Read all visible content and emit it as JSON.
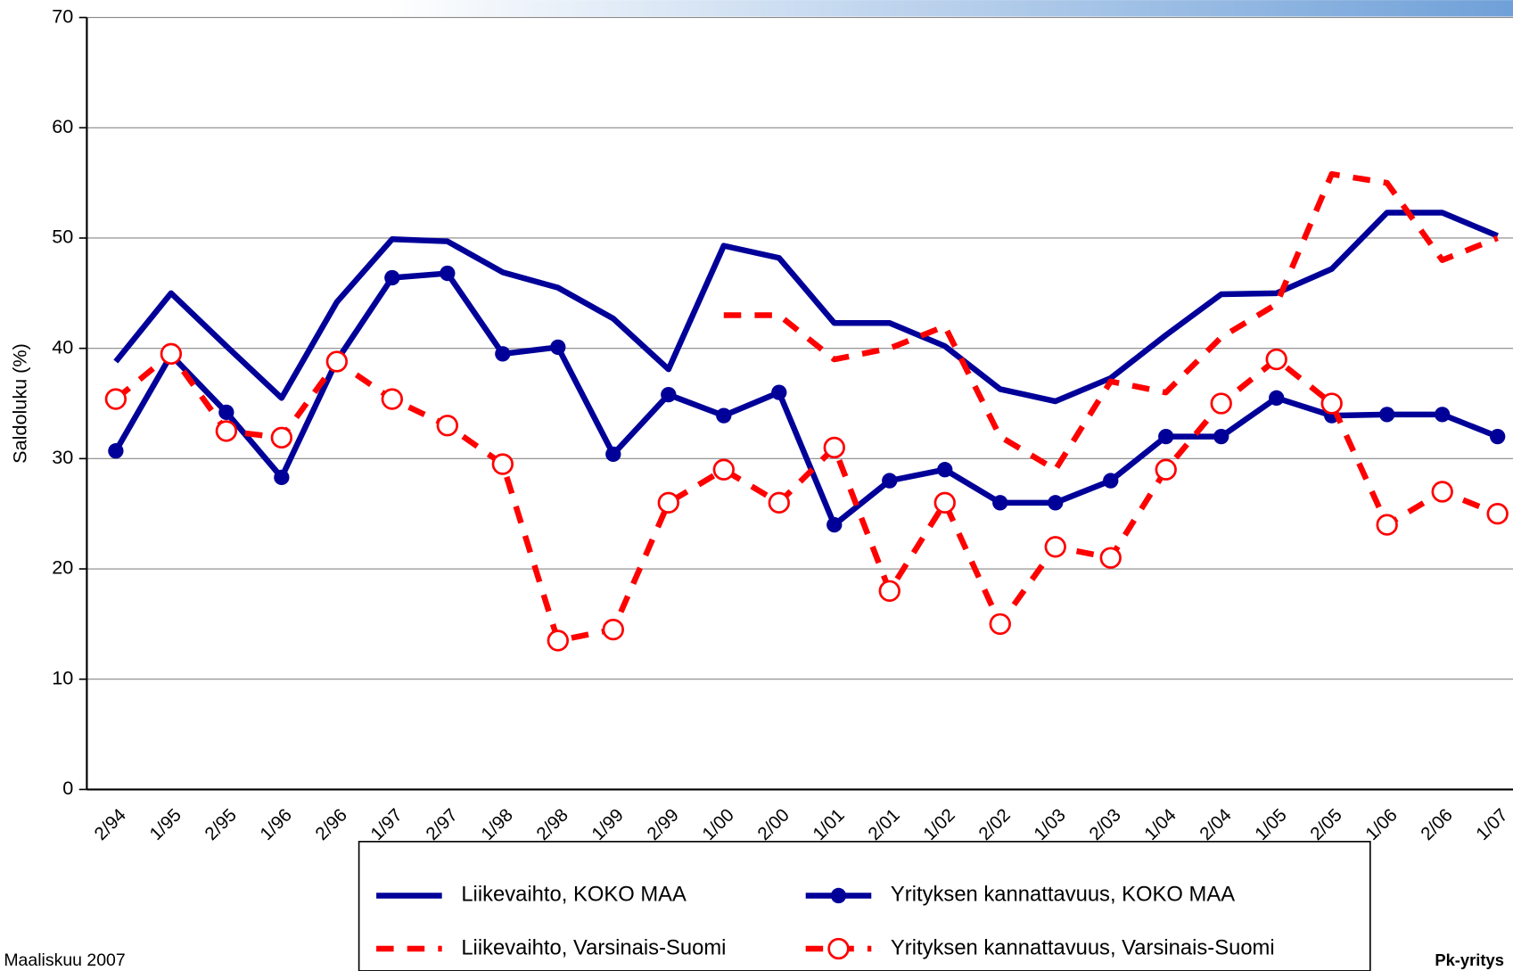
{
  "chart_data": {
    "type": "line",
    "y_label": "Saldoluku (%)",
    "footer_left": "Maaliskuu 2007",
    "footer_right": "Pk-yritys",
    "categories": [
      "2/94",
      "1/95",
      "2/95",
      "1/96",
      "2/96",
      "1/97",
      "2/97",
      "1/98",
      "2/98",
      "1/99",
      "2/99",
      "1/00",
      "2/00",
      "1/01",
      "2/01",
      "1/02",
      "2/02",
      "1/03",
      "2/03",
      "1/04",
      "2/04",
      "1/05",
      "2/05",
      "1/06",
      "2/06",
      "1/07"
    ],
    "ylim": [
      0,
      70
    ],
    "yticks": [
      0,
      10,
      20,
      30,
      40,
      50,
      60,
      70
    ],
    "grid": true,
    "series": [
      {
        "name": "Liikevaihto, KOKO MAA",
        "color": "#000099",
        "dashed": false,
        "marker": "none",
        "values": [
          38.8,
          45,
          40.2,
          35.5,
          44.2,
          49.9,
          49.7,
          46.9,
          45.5,
          42.7,
          38.1,
          49.3,
          48.2,
          42.3,
          42.3,
          40.2,
          36.3,
          35.2,
          37.3,
          41.2,
          44.9,
          45,
          47.2,
          52.3,
          52.3,
          50.2
        ]
      },
      {
        "name": "Yrityksen kannattavuus, KOKO MAA",
        "color": "#000099",
        "dashed": false,
        "marker": "filled",
        "values": [
          30.7,
          39.4,
          34.2,
          28.3,
          38.9,
          46.4,
          46.8,
          39.5,
          40.1,
          30.4,
          35.8,
          33.9,
          36,
          24,
          28,
          29,
          26,
          26,
          28,
          32,
          32,
          35.5,
          33.9,
          34,
          34,
          32
        ]
      },
      {
        "name": "Liikevaihto, Varsinais-Suomi",
        "color": "#ff0000",
        "dashed": true,
        "marker": "none",
        "values": [
          null,
          null,
          null,
          null,
          null,
          null,
          null,
          null,
          null,
          null,
          null,
          43,
          43,
          39,
          40,
          42,
          32,
          29,
          37,
          36,
          41,
          44,
          55.8,
          55,
          48,
          50
        ]
      },
      {
        "name": "Yrityksen kannattavuus, Varsinais-Suomi",
        "color": "#ff0000",
        "dashed": true,
        "marker": "open",
        "values": [
          35.4,
          39.5,
          32.5,
          31.9,
          38.8,
          35.4,
          33,
          29.5,
          13.5,
          14.5,
          26,
          29,
          26,
          31,
          18,
          26,
          15,
          22,
          21,
          29,
          35,
          39,
          35,
          24,
          27,
          25
        ]
      }
    ]
  }
}
